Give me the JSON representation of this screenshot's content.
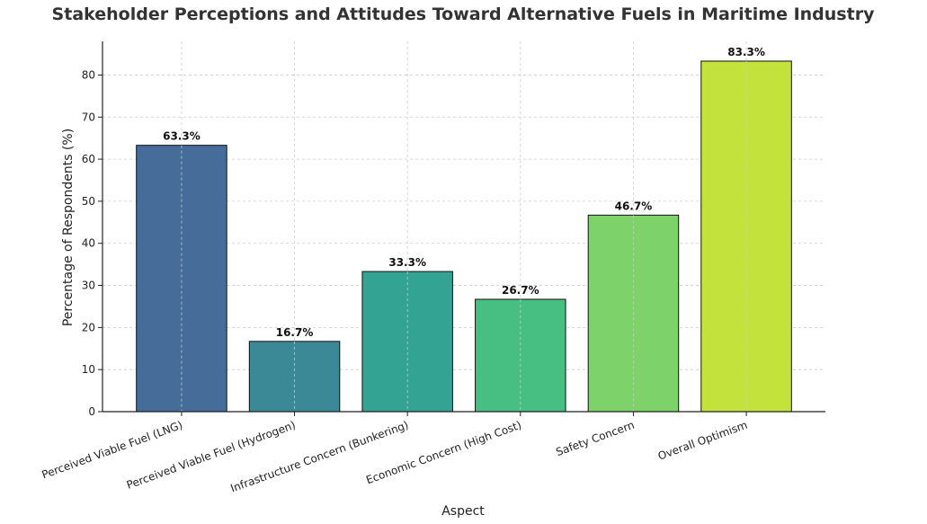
{
  "chart_data": {
    "type": "bar",
    "title": "Stakeholder Perceptions and Attitudes Toward Alternative Fuels in Maritime Industry",
    "xlabel": "Aspect",
    "ylabel": "Percentage of Respondents (%)",
    "categories": [
      "Perceived Viable Fuel (LNG)",
      "Perceived Viable Fuel (Hydrogen)",
      "Infrastructure Concern (Bunkering)",
      "Economic Concern (High Cost)",
      "Safety Concern",
      "Overall Optimism"
    ],
    "values": [
      63.3,
      16.7,
      33.3,
      26.7,
      46.7,
      83.3
    ],
    "data_labels": [
      "63.3%",
      "16.7%",
      "33.3%",
      "26.7%",
      "46.7%",
      "83.3%"
    ],
    "colors": [
      "#466c99",
      "#3b8896",
      "#33a494",
      "#47be82",
      "#7ed26a",
      "#c3e23b"
    ],
    "ylim": [
      0,
      88
    ],
    "yticks": [
      0,
      10,
      20,
      30,
      40,
      50,
      60,
      70,
      80
    ],
    "grid": true
  }
}
